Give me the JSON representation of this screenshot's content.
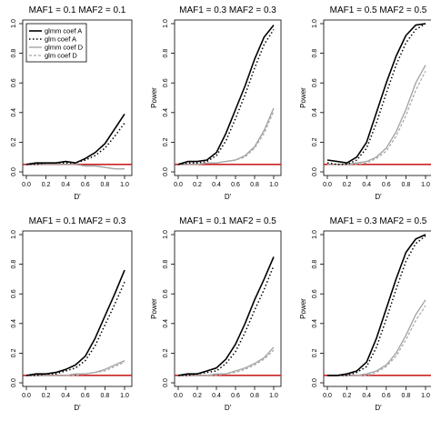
{
  "colors": {
    "glmm_A": "#000000",
    "glm_A": "#000000",
    "glmm_D": "#a6a6a6",
    "glm_D": "#a6a6a6",
    "reference_line": "#cc2222",
    "axis": "#000000"
  },
  "chart_data": [
    {
      "type": "line",
      "title": "MAF1 = 0.1 MAF2 = 0.1",
      "xlabel": "D'",
      "ylabel": "",
      "xlim": [
        0,
        1
      ],
      "ylim": [
        0,
        1
      ],
      "xticks": [
        "0.0",
        "0.2",
        "0.4",
        "0.6",
        "0.8",
        "1.0"
      ],
      "yticks": [
        "0.0",
        "0.2",
        "0.4",
        "0.6",
        "0.8",
        "1.0"
      ],
      "reference_line": 0.05,
      "legend": {
        "position": "top-left",
        "entries": [
          "glmm coef A",
          "glm coef A",
          "glmm coef D",
          "glm coef D"
        ]
      },
      "x": [
        0.0,
        0.1,
        0.2,
        0.3,
        0.4,
        0.5,
        0.6,
        0.7,
        0.8,
        0.9,
        1.0
      ],
      "series": [
        {
          "name": "glmm coef A",
          "values": [
            0.05,
            0.06,
            0.06,
            0.06,
            0.07,
            0.06,
            0.09,
            0.13,
            0.19,
            0.29,
            0.39
          ]
        },
        {
          "name": "glm coef A",
          "values": [
            0.05,
            0.05,
            0.06,
            0.06,
            0.06,
            0.06,
            0.08,
            0.11,
            0.16,
            0.24,
            0.33
          ]
        },
        {
          "name": "glmm coef D",
          "values": [
            0.05,
            0.05,
            0.05,
            0.05,
            0.05,
            0.05,
            0.04,
            0.04,
            0.03,
            0.02,
            0.02
          ]
        },
        {
          "name": "glm coef D",
          "values": [
            0.05,
            0.05,
            0.05,
            0.05,
            0.05,
            0.05,
            0.04,
            0.04,
            0.03,
            0.02,
            0.02
          ]
        }
      ]
    },
    {
      "type": "line",
      "title": "MAF1 = 0.3 MAF2 = 0.3",
      "xlabel": "D'",
      "ylabel": "Power",
      "xlim": [
        0,
        1
      ],
      "ylim": [
        0,
        1
      ],
      "xticks": [
        "0.0",
        "0.2",
        "0.4",
        "0.6",
        "0.8",
        "1.0"
      ],
      "yticks": [
        "0.0",
        "0.2",
        "0.4",
        "0.6",
        "0.8",
        "1.0"
      ],
      "reference_line": 0.05,
      "x": [
        0.0,
        0.1,
        0.2,
        0.3,
        0.4,
        0.5,
        0.6,
        0.7,
        0.8,
        0.9,
        1.0
      ],
      "series": [
        {
          "name": "glmm coef A",
          "values": [
            0.05,
            0.07,
            0.07,
            0.08,
            0.13,
            0.26,
            0.42,
            0.58,
            0.76,
            0.91,
            0.99
          ]
        },
        {
          "name": "glm coef A",
          "values": [
            0.05,
            0.06,
            0.06,
            0.07,
            0.11,
            0.21,
            0.36,
            0.52,
            0.7,
            0.86,
            0.96
          ]
        },
        {
          "name": "glmm coef D",
          "values": [
            0.05,
            0.05,
            0.05,
            0.06,
            0.06,
            0.07,
            0.08,
            0.11,
            0.17,
            0.28,
            0.43
          ]
        },
        {
          "name": "glm coef D",
          "values": [
            0.05,
            0.05,
            0.05,
            0.06,
            0.06,
            0.07,
            0.08,
            0.1,
            0.16,
            0.26,
            0.41
          ]
        }
      ]
    },
    {
      "type": "line",
      "title": "MAF1 = 0.5 MAF2 = 0.5",
      "xlabel": "D'",
      "ylabel": "Power",
      "xlim": [
        0,
        1
      ],
      "ylim": [
        0,
        1
      ],
      "xticks": [
        "0.0",
        "0.2",
        "0.4",
        "0.6",
        "0.8",
        "1.0"
      ],
      "yticks": [
        "0.0",
        "0.2",
        "0.4",
        "0.6",
        "0.8",
        "1.0"
      ],
      "reference_line": 0.05,
      "x": [
        0.0,
        0.1,
        0.2,
        0.3,
        0.4,
        0.5,
        0.6,
        0.7,
        0.8,
        0.9,
        1.0
      ],
      "series": [
        {
          "name": "glmm coef A",
          "values": [
            0.08,
            0.07,
            0.06,
            0.1,
            0.2,
            0.4,
            0.6,
            0.78,
            0.92,
            0.99,
            1.0
          ]
        },
        {
          "name": "glm coef A",
          "values": [
            0.06,
            0.05,
            0.05,
            0.08,
            0.16,
            0.33,
            0.53,
            0.72,
            0.87,
            0.96,
            1.0
          ]
        },
        {
          "name": "glmm coef D",
          "values": [
            0.05,
            0.05,
            0.05,
            0.06,
            0.07,
            0.1,
            0.16,
            0.27,
            0.42,
            0.6,
            0.72
          ]
        },
        {
          "name": "glm coef D",
          "values": [
            0.05,
            0.05,
            0.05,
            0.05,
            0.06,
            0.09,
            0.14,
            0.24,
            0.38,
            0.55,
            0.68
          ]
        }
      ]
    },
    {
      "type": "line",
      "title": "MAF1 = 0.1 MAF2 = 0.3",
      "xlabel": "D'",
      "ylabel": "",
      "xlim": [
        0,
        1
      ],
      "ylim": [
        0,
        1
      ],
      "xticks": [
        "0.0",
        "0.2",
        "0.4",
        "0.6",
        "0.8",
        "1.0"
      ],
      "yticks": [
        "0.0",
        "0.2",
        "0.4",
        "0.6",
        "0.8",
        "1.0"
      ],
      "reference_line": 0.05,
      "x": [
        0.0,
        0.1,
        0.2,
        0.3,
        0.4,
        0.5,
        0.6,
        0.7,
        0.8,
        0.9,
        1.0
      ],
      "series": [
        {
          "name": "glmm coef A",
          "values": [
            0.05,
            0.06,
            0.06,
            0.07,
            0.09,
            0.12,
            0.18,
            0.3,
            0.45,
            0.6,
            0.76
          ]
        },
        {
          "name": "glm coef A",
          "values": [
            0.05,
            0.05,
            0.06,
            0.06,
            0.08,
            0.1,
            0.15,
            0.25,
            0.39,
            0.53,
            0.68
          ]
        },
        {
          "name": "glmm coef D",
          "values": [
            0.05,
            0.05,
            0.05,
            0.05,
            0.05,
            0.06,
            0.06,
            0.07,
            0.09,
            0.12,
            0.15
          ]
        },
        {
          "name": "glm coef D",
          "values": [
            0.05,
            0.05,
            0.05,
            0.05,
            0.05,
            0.05,
            0.06,
            0.07,
            0.08,
            0.11,
            0.14
          ]
        }
      ]
    },
    {
      "type": "line",
      "title": "MAF1 = 0.1 MAF2 = 0.5",
      "xlabel": "D'",
      "ylabel": "Power",
      "xlim": [
        0,
        1
      ],
      "ylim": [
        0,
        1
      ],
      "xticks": [
        "0.0",
        "0.2",
        "0.4",
        "0.6",
        "0.8",
        "1.0"
      ],
      "yticks": [
        "0.0",
        "0.2",
        "0.4",
        "0.6",
        "0.8",
        "1.0"
      ],
      "reference_line": 0.05,
      "x": [
        0.0,
        0.1,
        0.2,
        0.3,
        0.4,
        0.5,
        0.6,
        0.7,
        0.8,
        0.9,
        1.0
      ],
      "series": [
        {
          "name": "glmm coef A",
          "values": [
            0.05,
            0.06,
            0.06,
            0.08,
            0.1,
            0.16,
            0.26,
            0.4,
            0.56,
            0.7,
            0.85
          ]
        },
        {
          "name": "glm coef A",
          "values": [
            0.05,
            0.05,
            0.06,
            0.07,
            0.08,
            0.13,
            0.21,
            0.34,
            0.49,
            0.63,
            0.79
          ]
        },
        {
          "name": "glmm coef D",
          "values": [
            0.05,
            0.05,
            0.05,
            0.05,
            0.06,
            0.06,
            0.08,
            0.1,
            0.13,
            0.17,
            0.24
          ]
        },
        {
          "name": "glm coef D",
          "values": [
            0.05,
            0.05,
            0.05,
            0.05,
            0.05,
            0.06,
            0.07,
            0.09,
            0.12,
            0.16,
            0.22
          ]
        }
      ]
    },
    {
      "type": "line",
      "title": "MAF1 = 0.3 MAF2 = 0.5",
      "xlabel": "D'",
      "ylabel": "Power",
      "xlim": [
        0,
        1
      ],
      "ylim": [
        0,
        1
      ],
      "xticks": [
        "0.0",
        "0.2",
        "0.4",
        "0.6",
        "0.8",
        "1.0"
      ],
      "yticks": [
        "0.0",
        "0.2",
        "0.4",
        "0.6",
        "0.8",
        "1.0"
      ],
      "reference_line": 0.05,
      "x": [
        0.0,
        0.1,
        0.2,
        0.3,
        0.4,
        0.5,
        0.6,
        0.7,
        0.8,
        0.9,
        1.0
      ],
      "series": [
        {
          "name": "glmm coef A",
          "values": [
            0.05,
            0.05,
            0.06,
            0.08,
            0.14,
            0.3,
            0.5,
            0.7,
            0.88,
            0.97,
            1.0
          ]
        },
        {
          "name": "glm coef A",
          "values": [
            0.05,
            0.05,
            0.05,
            0.07,
            0.11,
            0.24,
            0.43,
            0.63,
            0.82,
            0.94,
            0.99
          ]
        },
        {
          "name": "glmm coef D",
          "values": [
            0.05,
            0.05,
            0.05,
            0.05,
            0.06,
            0.08,
            0.12,
            0.2,
            0.32,
            0.46,
            0.56
          ]
        },
        {
          "name": "glm coef D",
          "values": [
            0.05,
            0.05,
            0.05,
            0.05,
            0.05,
            0.07,
            0.11,
            0.18,
            0.29,
            0.42,
            0.52
          ]
        }
      ]
    }
  ]
}
